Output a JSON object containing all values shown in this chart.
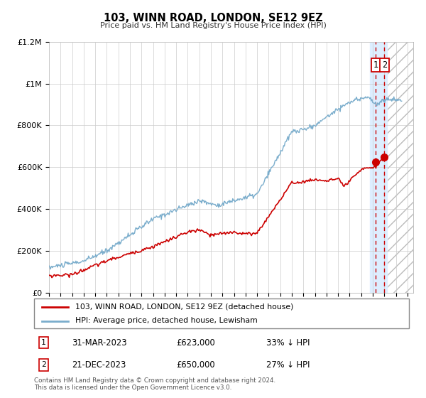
{
  "title": "103, WINN ROAD, LONDON, SE12 9EZ",
  "subtitle": "Price paid vs. HM Land Registry's House Price Index (HPI)",
  "legend_label_red": "103, WINN ROAD, LONDON, SE12 9EZ (detached house)",
  "legend_label_blue": "HPI: Average price, detached house, Lewisham",
  "annotation1_date": "31-MAR-2023",
  "annotation1_price": "£623,000",
  "annotation1_hpi": "33% ↓ HPI",
  "annotation2_date": "21-DEC-2023",
  "annotation2_price": "£650,000",
  "annotation2_hpi": "27% ↓ HPI",
  "footer": "Contains HM Land Registry data © Crown copyright and database right 2024.\nThis data is licensed under the Open Government Licence v3.0.",
  "red_color": "#cc0000",
  "blue_color": "#7aadcc",
  "vspan_color": "#ddeeff",
  "vline_color": "#cc0000",
  "xmin": 1995.0,
  "xmax": 2026.5,
  "ymin": 0,
  "ymax": 1200000,
  "sale1_x": 2023.25,
  "sale2_x": 2024.0,
  "marker1_y": 623000,
  "marker2_y": 650000,
  "vspan_x1": 2022.75,
  "vspan_x2": 2024.25,
  "hatch_x1": 2024.25,
  "hatch_x2": 2026.5,
  "yticks": [
    0,
    200000,
    400000,
    600000,
    800000,
    1000000,
    1200000
  ],
  "ylabels": [
    "£0",
    "£200K",
    "£400K",
    "£600K",
    "£800K",
    "£1M",
    "£1.2M"
  ]
}
